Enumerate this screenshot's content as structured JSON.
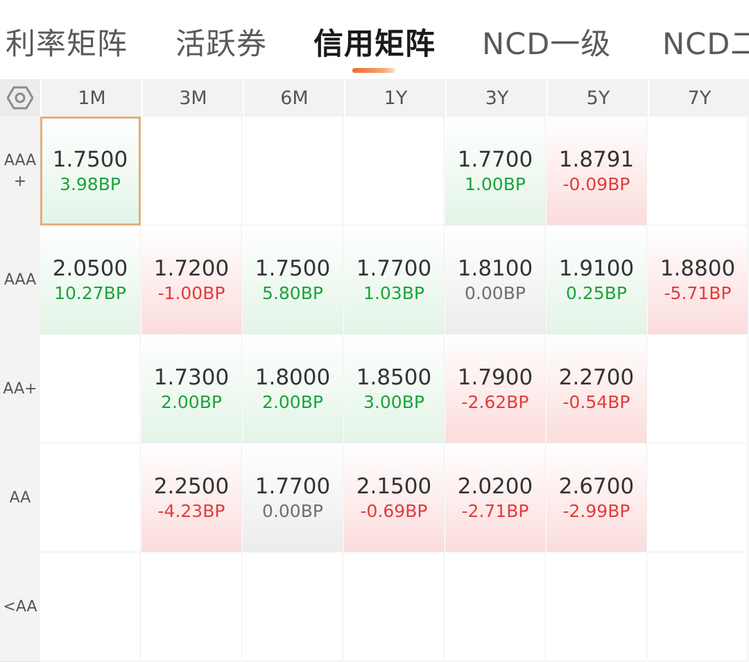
{
  "tabs": [
    {
      "label": "利率矩阵",
      "active": false
    },
    {
      "label": "活跃券",
      "active": false
    },
    {
      "label": "信用矩阵",
      "active": true
    },
    {
      "label": "NCD一级",
      "active": false
    },
    {
      "label": "NCD二",
      "active": false
    }
  ],
  "columns": [
    "1M",
    "3M",
    "6M",
    "1Y",
    "3Y",
    "5Y",
    "7Y"
  ],
  "rows": [
    {
      "label": "AAA+",
      "cells": [
        {
          "value": "1.7500",
          "change": "3.98BP",
          "trend": "up",
          "selected": true
        },
        null,
        null,
        null,
        {
          "value": "1.7700",
          "change": "1.00BP",
          "trend": "up"
        },
        {
          "value": "1.8791",
          "change": "-0.09BP",
          "trend": "down"
        },
        null
      ]
    },
    {
      "label": "AAA",
      "cells": [
        {
          "value": "2.0500",
          "change": "10.27BP",
          "trend": "up"
        },
        {
          "value": "1.7200",
          "change": "-1.00BP",
          "trend": "down"
        },
        {
          "value": "1.7500",
          "change": "5.80BP",
          "trend": "up"
        },
        {
          "value": "1.7700",
          "change": "1.03BP",
          "trend": "up"
        },
        {
          "value": "1.8100",
          "change": "0.00BP",
          "trend": "flat"
        },
        {
          "value": "1.9100",
          "change": "0.25BP",
          "trend": "up"
        },
        {
          "value": "1.8800",
          "change": "-5.71BP",
          "trend": "down"
        }
      ]
    },
    {
      "label": "AA+",
      "cells": [
        null,
        {
          "value": "1.7300",
          "change": "2.00BP",
          "trend": "up"
        },
        {
          "value": "1.8000",
          "change": "2.00BP",
          "trend": "up"
        },
        {
          "value": "1.8500",
          "change": "3.00BP",
          "trend": "up"
        },
        {
          "value": "1.7900",
          "change": "-2.62BP",
          "trend": "down"
        },
        {
          "value": "2.2700",
          "change": "-0.54BP",
          "trend": "down"
        },
        null
      ]
    },
    {
      "label": "AA",
      "cells": [
        null,
        {
          "value": "2.2500",
          "change": "-4.23BP",
          "trend": "down"
        },
        {
          "value": "1.7700",
          "change": "0.00BP",
          "trend": "flat"
        },
        {
          "value": "2.1500",
          "change": "-0.69BP",
          "trend": "down"
        },
        {
          "value": "2.0200",
          "change": "-2.71BP",
          "trend": "down"
        },
        {
          "value": "2.6700",
          "change": "-2.99BP",
          "trend": "down"
        },
        null
      ]
    },
    {
      "label": "<AA",
      "cells": [
        null,
        null,
        null,
        null,
        null,
        null,
        null
      ]
    }
  ],
  "settings_icon": "hexagon-settings-icon"
}
